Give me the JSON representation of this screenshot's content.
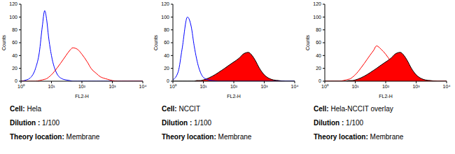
{
  "chart_data": [
    {
      "type": "line",
      "x_label": "FL2-H",
      "y_label": "Counts",
      "x": [
        1,
        1.5,
        2,
        3,
        4,
        5,
        6,
        7,
        8,
        10,
        15,
        20,
        30,
        40,
        50,
        70,
        100,
        150,
        200,
        300,
        400,
        500,
        700,
        1000,
        1500,
        2000,
        3000,
        5000,
        10000
      ],
      "series": [
        {
          "type": "line",
          "color": "#0000ff",
          "values": [
            0,
            2,
            5,
            20,
            45,
            85,
            110,
            95,
            70,
            40,
            12,
            5,
            2,
            1,
            0,
            0,
            0,
            0,
            0,
            0,
            0,
            0,
            0,
            0,
            0,
            0,
            0,
            0,
            0
          ]
        },
        {
          "type": "line",
          "color": "#ff0000",
          "values": [
            0,
            0,
            0,
            0,
            1,
            2,
            3,
            4,
            6,
            10,
            20,
            28,
            40,
            48,
            52,
            50,
            42,
            30,
            20,
            12,
            7,
            5,
            3,
            1,
            0,
            0,
            0,
            0,
            0
          ]
        }
      ],
      "log": "x",
      "xlim": [
        1,
        10000
      ],
      "xticks": [
        {
          "value": 1,
          "label": "10⁰"
        },
        {
          "value": 10,
          "label": "10¹"
        },
        {
          "value": 100,
          "label": "10²"
        },
        {
          "value": 1000,
          "label": "10³"
        },
        {
          "value": 10000,
          "label": "10⁴"
        }
      ],
      "ylim": [
        0,
        120
      ],
      "yticks": [
        0,
        20,
        40,
        60,
        80,
        100,
        120
      ],
      "grid": false,
      "annotations": [
        "Cell: Hela",
        "Dilution : 1/100",
        "Theory location: Membrane"
      ]
    },
    {
      "type": "line",
      "x_label": "FL2-H",
      "y_label": "Counts",
      "x": [
        1,
        1.5,
        2,
        3,
        4,
        5,
        6,
        7,
        8,
        10,
        15,
        20,
        30,
        40,
        50,
        70,
        100,
        150,
        200,
        300,
        400,
        500,
        700,
        1000,
        1500,
        2000,
        3000,
        5000,
        10000
      ],
      "series": [
        {
          "type": "line",
          "color": "#0000ff",
          "values": [
            2,
            15,
            50,
            100,
            85,
            55,
            35,
            22,
            14,
            6,
            2,
            1,
            0,
            0,
            0,
            0,
            0,
            0,
            0,
            0,
            0,
            0,
            0,
            0,
            0,
            0,
            0,
            0,
            0
          ]
        },
        {
          "type": "area",
          "color": "#ff0000",
          "values": [
            0,
            0,
            0,
            0,
            0,
            0,
            1,
            1,
            1,
            2,
            5,
            8,
            13,
            17,
            20,
            25,
            30,
            36,
            42,
            45,
            40,
            33,
            20,
            10,
            4,
            2,
            1,
            0,
            0
          ]
        }
      ],
      "log": "x",
      "xlim": [
        1,
        10000
      ],
      "xticks": [
        {
          "value": 1,
          "label": "10⁰"
        },
        {
          "value": 10,
          "label": "10¹"
        },
        {
          "value": 100,
          "label": "10²"
        },
        {
          "value": 1000,
          "label": "10³"
        },
        {
          "value": 10000,
          "label": "10⁴"
        }
      ],
      "ylim": [
        0,
        120
      ],
      "yticks": [
        0,
        20,
        40,
        60,
        80,
        100,
        120
      ],
      "grid": false,
      "annotations": [
        "Cell: NCCIT",
        "Dilution : 1/100",
        "Theory location: Membrane"
      ]
    },
    {
      "type": "line",
      "x_label": "FL2-H",
      "y_label": "Counts",
      "x": [
        1,
        1.5,
        2,
        3,
        4,
        5,
        6,
        7,
        8,
        10,
        15,
        20,
        30,
        40,
        50,
        70,
        100,
        150,
        200,
        300,
        400,
        500,
        700,
        1000,
        1500,
        2000,
        3000,
        5000,
        10000
      ],
      "series": [
        {
          "type": "area",
          "color": "#ff0000",
          "values": [
            0,
            0,
            0,
            0,
            0,
            0,
            1,
            1,
            1,
            2,
            5,
            8,
            13,
            17,
            20,
            25,
            30,
            36,
            42,
            45,
            40,
            33,
            20,
            10,
            4,
            2,
            1,
            0,
            0
          ]
        },
        {
          "type": "line",
          "color": "#ff0000",
          "values": [
            0,
            0,
            0,
            0,
            1,
            2,
            3,
            4,
            6,
            10,
            20,
            28,
            40,
            48,
            55,
            50,
            42,
            30,
            20,
            12,
            7,
            5,
            3,
            1,
            0,
            0,
            0,
            0,
            0
          ]
        }
      ],
      "log": "x",
      "xlim": [
        1,
        10000
      ],
      "xticks": [
        {
          "value": 1,
          "label": "10⁰"
        },
        {
          "value": 10,
          "label": "10¹"
        },
        {
          "value": 100,
          "label": "10²"
        },
        {
          "value": 1000,
          "label": "10³"
        },
        {
          "value": 10000,
          "label": "10⁴"
        }
      ],
      "ylim": [
        0,
        120
      ],
      "yticks": [
        0,
        20,
        40,
        60,
        80,
        100,
        120
      ],
      "grid": false,
      "annotations": [
        "Cell: Hela-NCCIT overlay",
        "Dilution : 1/100",
        "Theory location: Membrane"
      ]
    }
  ]
}
